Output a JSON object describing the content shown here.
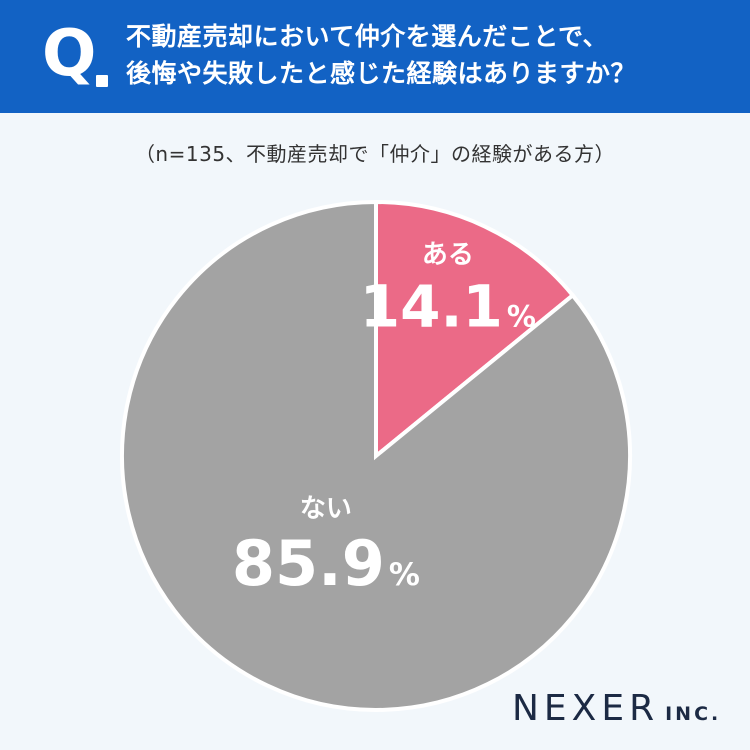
{
  "header": {
    "q_mark": "Q",
    "question_line1": "不動産売却において仲介を選んだことで、",
    "question_line2": "後悔や失敗したと感じた経験はありますか？",
    "background_color": "#1262c4"
  },
  "note": "（n=135、不動産売却で「仲介」の経験がある方）",
  "chart_data": {
    "type": "pie",
    "title": "",
    "slices": [
      {
        "label": "ある",
        "value": 14.1,
        "display": "14.1",
        "unit": "%",
        "color": "#eb6a87"
      },
      {
        "label": "ない",
        "value": 85.9,
        "display": "85.9",
        "unit": "%",
        "color": "#a3a3a3"
      }
    ],
    "start_angle": "12 o'clock",
    "direction": "clockwise"
  },
  "brand": {
    "name": "NEXER",
    "suffix": "INC."
  }
}
